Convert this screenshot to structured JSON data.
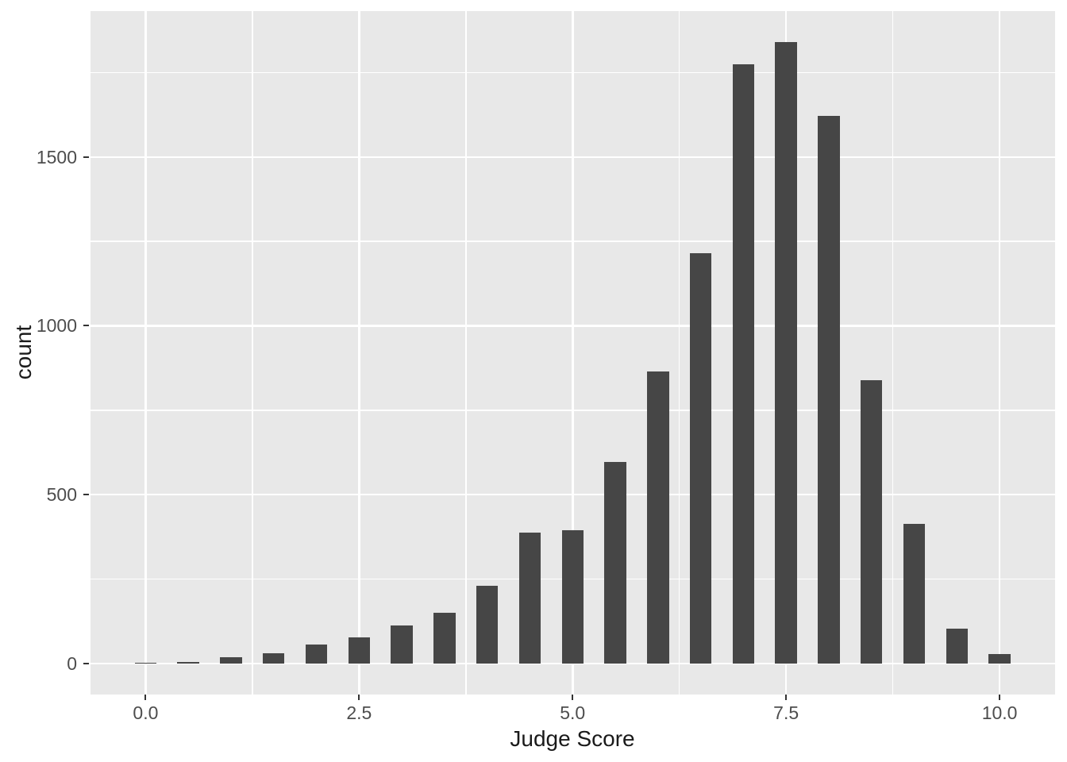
{
  "chart_data": {
    "type": "bar",
    "title": "",
    "xlabel": "Judge Score",
    "ylabel": "count",
    "categories": [
      0,
      0.5,
      1,
      1.5,
      2,
      2.5,
      3,
      3.5,
      4,
      4.5,
      5,
      5.5,
      6,
      6.5,
      7,
      7.5,
      8,
      8.5,
      9,
      9.5,
      10
    ],
    "values": [
      3,
      5,
      19,
      31,
      55,
      77,
      112,
      150,
      230,
      387,
      394,
      597,
      865,
      1215,
      1774,
      1840,
      1621,
      839,
      414,
      104,
      27
    ],
    "bar_width_units": 0.25,
    "x_major_ticks": [
      0,
      2.5,
      5,
      7.5,
      10
    ],
    "x_tick_labels": [
      "0.0",
      "2.5",
      "5.0",
      "7.5",
      "10.0"
    ],
    "x_minor_ticks": [
      1.25,
      3.75,
      6.25,
      8.75
    ],
    "y_major_ticks": [
      0,
      500,
      1000,
      1500
    ],
    "y_tick_labels": [
      "0",
      "500",
      "1000",
      "1500"
    ],
    "y_minor_ticks": [
      250,
      750,
      1250,
      1750
    ],
    "xlim": [
      -0.65,
      10.65
    ],
    "ylim": [
      -92,
      1932
    ],
    "grid": "major-and-minor, white on gray panel",
    "legend_position": "none",
    "colors": {
      "bar_fill": "#464646",
      "panel_bg": "#E8E8E8",
      "figure_bg": "#FFFFFF",
      "gridline": "#FFFFFF",
      "tick_label": "#4D4D4D",
      "axis_title": "#1A1A1A",
      "tick_mark": "#333333"
    }
  }
}
